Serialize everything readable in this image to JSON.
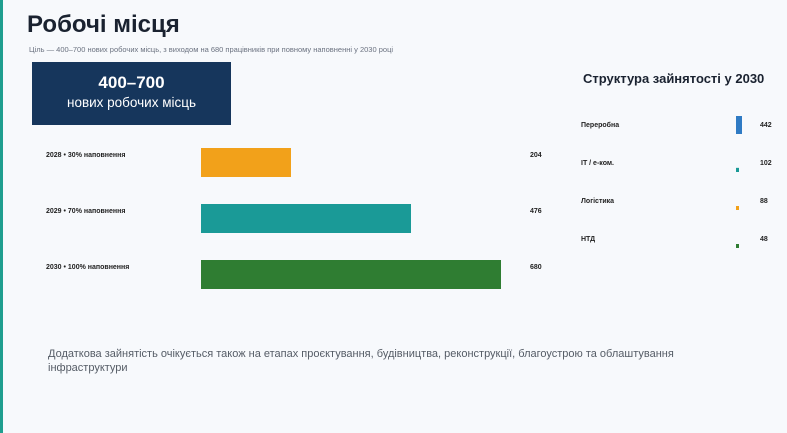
{
  "title": "Робочі місця",
  "subtitle": "Ціль — 400–700 нових робочих місць, з виходом на 680 працівників при повному наповненні у 2030 році",
  "kpi": {
    "value": "400–700",
    "caption": "нових робочих місць"
  },
  "side_title": "Структура зайнятості у 2030",
  "footnote": "Додаткова зайнятість очікується також на етапах проєктування, будівництва, реконструкції, благоустрою та облаштування інфраструктури",
  "colors": {
    "accent": "#1f9e8f",
    "kpi_bg": "#16365c",
    "bar_2028": "#f2a11a",
    "bar_2029": "#1a9a97",
    "bar_2030": "#2f7d32",
    "sector_processing": "#2f7bc4",
    "sector_it": "#1a9a97",
    "sector_logistics": "#f2a11a",
    "sector_ntd": "#2f7d32"
  },
  "chart_data": [
    {
      "type": "bar",
      "orientation": "horizontal",
      "categories": [
        "2028 • 30% наповнення",
        "2029 • 70% наповнення",
        "2030 • 100% наповнення"
      ],
      "values": [
        204,
        476,
        680
      ],
      "colors": [
        "#f2a11a",
        "#1a9a97",
        "#2f7d32"
      ],
      "xlim": [
        0,
        680
      ],
      "grid": false,
      "legend": "none"
    },
    {
      "type": "bar",
      "orientation": "vertical",
      "title": "Структура зайнятості у 2030",
      "categories": [
        "Переробна",
        "IT / е-ком.",
        "Логістика",
        "НТД"
      ],
      "values": [
        442,
        102,
        88,
        48
      ],
      "colors": [
        "#2f7bc4",
        "#1a9a97",
        "#f2a11a",
        "#2f7d32"
      ],
      "grid": false,
      "legend": "none"
    }
  ]
}
